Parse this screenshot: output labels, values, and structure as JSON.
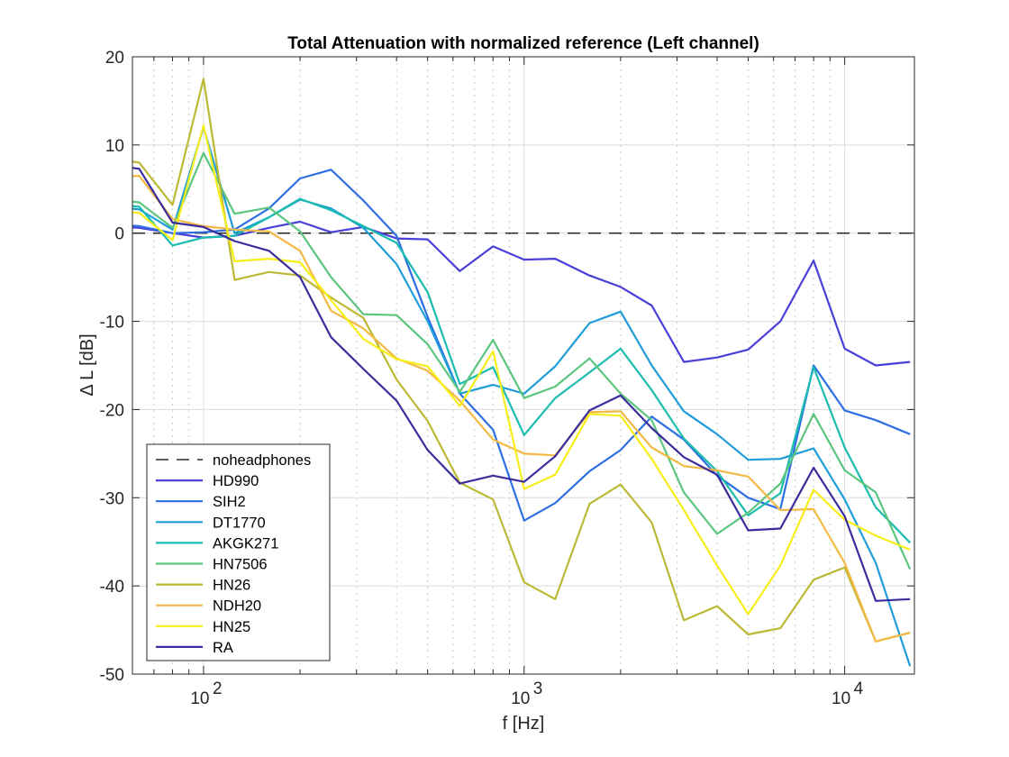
{
  "chart_data": {
    "type": "line",
    "title": "Total Attenuation with normalized reference (Left channel)",
    "xlabel": "f [Hz]",
    "ylabel": "Δ L [dB]",
    "xscale": "log",
    "xlim": [
      60,
      16500
    ],
    "ylim": [
      -50,
      20
    ],
    "grid": true,
    "legend_position": "bottom-left",
    "yticks": [
      20,
      10,
      0,
      -10,
      -20,
      -30,
      -40,
      -50
    ],
    "ytick_labels": [
      "20",
      "10",
      "0",
      "-10",
      "-20",
      "-30",
      "-40",
      "-50"
    ],
    "xticks": [
      100,
      1000,
      10000
    ],
    "xtick_labels": [
      {
        "base": "10",
        "exp": "2"
      },
      {
        "base": "10",
        "exp": "3"
      },
      {
        "base": "10",
        "exp": "4"
      }
    ],
    "x": [
      50,
      63,
      80,
      100,
      125,
      160,
      200,
      250,
      315,
      400,
      500,
      630,
      800,
      1000,
      1250,
      1600,
      2000,
      2500,
      3150,
      4000,
      5000,
      6300,
      8000,
      10000,
      12500,
      16000
    ],
    "reference": {
      "name": "noheadphones",
      "value": 0,
      "style": "dashed",
      "color": "#000000"
    },
    "series": [
      {
        "name": "HD990",
        "color": "#4a3fd8",
        "values": [
          0.8,
          0.6,
          0.0,
          -0.5,
          -0.3,
          0.6,
          1.3,
          0.1,
          0.7,
          -0.6,
          -0.7,
          -4.3,
          -1.5,
          -3.0,
          -2.9,
          -4.8,
          -6.1,
          -8.2,
          -14.6,
          -14.1,
          -13.2,
          -10.0,
          -3.1,
          -13.1,
          -15.0,
          -14.6
        ]
      },
      {
        "name": "SIH2",
        "color": "#2f6fe4",
        "values": [
          1.0,
          0.8,
          0.0,
          0.1,
          0.4,
          2.8,
          6.2,
          7.2,
          3.7,
          -0.3,
          -9.5,
          -18.2,
          -22.3,
          -32.6,
          -30.6,
          -27.0,
          -24.6,
          -20.8,
          -23.4,
          -27.5,
          -30.0,
          -31.3,
          -15.0,
          -20.1,
          -21.2,
          -22.8
        ]
      },
      {
        "name": "DT1770",
        "color": "#1f9dd8",
        "values": [
          3.0,
          2.7,
          0.4,
          12.0,
          0.0,
          1.8,
          3.8,
          2.8,
          0.6,
          -3.5,
          -10.0,
          -18.2,
          -17.2,
          -18.2,
          -15.1,
          -10.2,
          -8.9,
          -15.0,
          -20.2,
          -22.8,
          -25.7,
          -25.6,
          -24.4,
          -30.2,
          -37.4,
          -49.1
        ]
      },
      {
        "name": "AKGK271",
        "color": "#1bbcb0",
        "values": [
          3.3,
          3.0,
          -1.4,
          -0.5,
          -0.3,
          1.8,
          3.9,
          2.6,
          0.8,
          -1.1,
          -6.7,
          -17.1,
          -15.2,
          -22.9,
          -18.7,
          -15.8,
          -13.1,
          -17.8,
          -23.3,
          -27.0,
          -32.0,
          -29.5,
          -15.2,
          -24.3,
          -31.1,
          -35.1
        ]
      },
      {
        "name": "HN7506",
        "color": "#5cc57e",
        "values": [
          3.8,
          3.5,
          0.6,
          9.1,
          2.2,
          2.9,
          0.2,
          -5.0,
          -9.2,
          -9.3,
          -12.6,
          -18.0,
          -12.1,
          -18.7,
          -17.4,
          -14.2,
          -18.2,
          -21.2,
          -29.4,
          -34.1,
          -31.7,
          -28.4,
          -20.5,
          -26.9,
          -29.4,
          -38.1
        ]
      },
      {
        "name": "HN26",
        "color": "#bcb935",
        "values": [
          8.5,
          8.0,
          3.2,
          17.5,
          -5.3,
          -4.4,
          -4.8,
          -7.3,
          -9.6,
          -16.6,
          -21.3,
          -28.3,
          -30.2,
          -39.6,
          -41.5,
          -30.7,
          -28.5,
          -32.8,
          -43.9,
          -42.3,
          -45.5,
          -44.8,
          -39.3,
          -37.9,
          -46.3,
          -45.3
        ]
      },
      {
        "name": "NDH20",
        "color": "#f2b944",
        "values": [
          6.3,
          6.5,
          1.6,
          0.8,
          0.4,
          0.2,
          -2.0,
          -8.8,
          -10.8,
          -14.2,
          -15.6,
          -19.0,
          -23.4,
          -25.0,
          -25.2,
          -20.3,
          -20.2,
          -24.3,
          -26.4,
          -26.9,
          -27.6,
          -31.4,
          -31.3,
          -37.4,
          -46.3,
          -45.3
        ]
      },
      {
        "name": "HN25",
        "color": "#f7ee19",
        "values": [
          2.6,
          2.3,
          -0.8,
          12.2,
          -3.2,
          -2.9,
          -3.3,
          -7.6,
          -12.0,
          -14.3,
          -15.1,
          -19.6,
          -13.4,
          -29.0,
          -27.4,
          -20.5,
          -20.7,
          -25.6,
          -31.4,
          -37.7,
          -43.2,
          -37.7,
          -29.1,
          -32.5,
          -34.3,
          -35.9
        ]
      },
      {
        "name": "RA",
        "color": "#3b2d9c",
        "values": [
          7.8,
          7.3,
          1.2,
          0.7,
          -0.9,
          -2.0,
          -5.0,
          -11.8,
          -15.4,
          -19.0,
          -24.6,
          -28.4,
          -27.5,
          -28.2,
          -25.3,
          -20.1,
          -18.4,
          -22.1,
          -25.4,
          -27.4,
          -33.7,
          -33.5,
          -26.6,
          -32.1,
          -41.7,
          -41.5
        ]
      }
    ]
  }
}
